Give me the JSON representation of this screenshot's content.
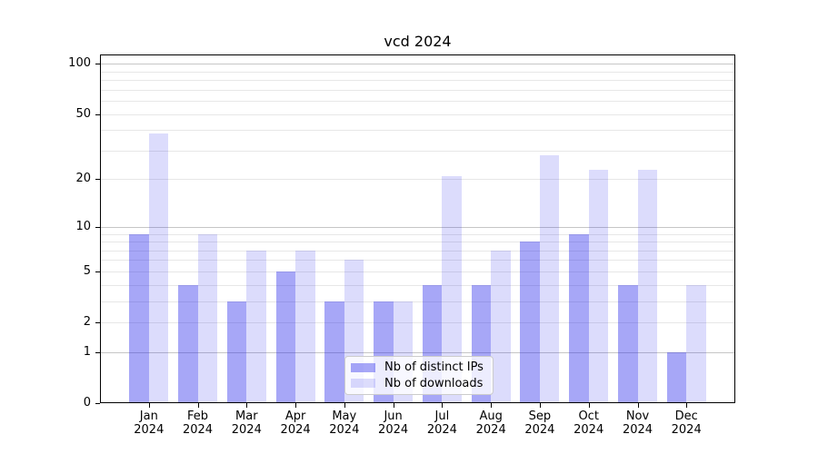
{
  "title": "vcd 2024",
  "chart_data": {
    "type": "bar",
    "title": "vcd 2024",
    "categories": [
      "Jan",
      "Feb",
      "Mar",
      "Apr",
      "May",
      "Jun",
      "Jul",
      "Aug",
      "Sep",
      "Oct",
      "Nov",
      "Dec"
    ],
    "year_label": "2024",
    "series": [
      {
        "name": "Nb of distinct IPs",
        "color": "rgba(35,35,235,0.40)",
        "values": [
          9,
          4,
          3,
          5,
          3,
          3,
          4,
          4,
          8,
          9,
          4,
          1
        ]
      },
      {
        "name": "Nb of downloads",
        "color": "rgba(35,35,235,0.155)",
        "values": [
          38,
          9,
          7,
          7,
          6,
          3,
          21,
          7,
          28,
          23,
          23,
          4
        ]
      }
    ],
    "yscale": "log1p",
    "ylim": [
      0,
      113
    ],
    "yticks_labeled": [
      0,
      1,
      2,
      5,
      10,
      20,
      50,
      100
    ],
    "yticks_major_gridlines": [
      1,
      10,
      100
    ],
    "yticks_minor_gridlines": [
      2,
      3,
      4,
      5,
      6,
      7,
      8,
      9,
      20,
      30,
      40,
      50,
      60,
      70,
      80,
      90
    ],
    "grid": "horizontal",
    "legend_position": "lower center",
    "colors": {
      "major_gridline": "#c6c6c6",
      "minor_gridline": "#e7e7e7",
      "spine": "#000000",
      "background": "#ffffff"
    }
  }
}
